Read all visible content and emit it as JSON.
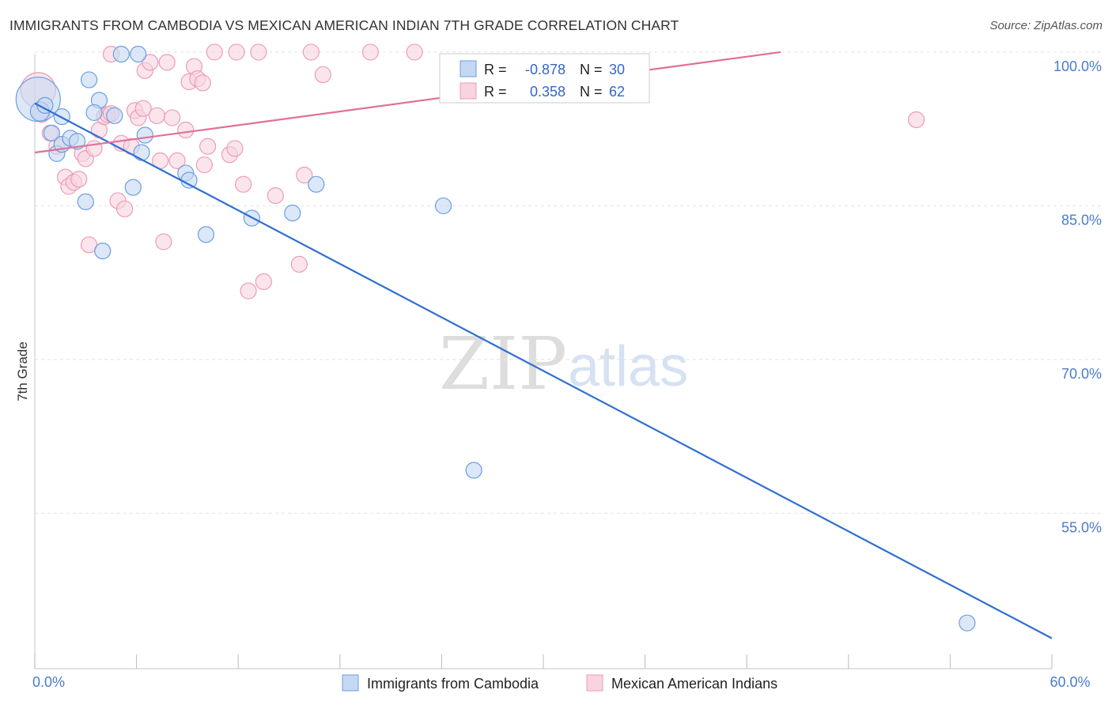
{
  "title": "IMMIGRANTS FROM CAMBODIA VS MEXICAN AMERICAN INDIAN 7TH GRADE CORRELATION CHART",
  "source": "Source: ZipAtlas.com",
  "watermark": {
    "zip": "ZIP",
    "atlas": "atlas"
  },
  "chart_data": {
    "type": "scatter",
    "xlabel": "",
    "ylabel": "7th Grade",
    "xlim": [
      0,
      60
    ],
    "ylim": [
      42,
      102
    ],
    "x_tick_labels": [
      {
        "value": 0,
        "label": "0.0%"
      },
      {
        "value": 60,
        "label": "60.0%"
      }
    ],
    "y_tick_labels": [
      {
        "value": 100,
        "label": "100.0%"
      },
      {
        "value": 85,
        "label": "85.0%"
      },
      {
        "value": 70,
        "label": "70.0%"
      },
      {
        "value": 55,
        "label": "55.0%"
      }
    ],
    "y_gridlines": [
      100,
      85,
      70,
      55
    ],
    "grid": true,
    "legend_position": "bottom",
    "stats_box": [
      {
        "r_label": "R =",
        "r_value": "-0.878",
        "n_label": "N =",
        "n_value": "30"
      },
      {
        "r_label": "R =",
        "r_value": "0.358",
        "n_label": "N =",
        "n_value": "62"
      }
    ],
    "series": [
      {
        "name": "Immigrants from Cambodia",
        "color": "#6a9ee0",
        "fill": "#c5d8f3",
        "line_color": "#2f6fd1",
        "trend": [
          [
            0,
            95.0
          ],
          [
            60,
            42.8
          ]
        ],
        "points": [
          [
            0.2,
            95.4,
            28
          ],
          [
            0.3,
            94.2,
            12
          ],
          [
            0.6,
            94.8,
            10
          ],
          [
            1.0,
            92.1,
            10
          ],
          [
            1.3,
            90.1,
            10
          ],
          [
            1.6,
            91.0,
            10
          ],
          [
            2.1,
            91.6,
            10
          ],
          [
            2.5,
            91.3,
            10
          ],
          [
            1.6,
            93.7,
            10
          ],
          [
            3.2,
            97.3,
            10
          ],
          [
            3.8,
            95.3,
            10
          ],
          [
            3.5,
            94.1,
            10
          ],
          [
            4.7,
            93.8,
            10
          ],
          [
            5.1,
            99.8,
            10
          ],
          [
            6.1,
            99.8,
            10
          ],
          [
            6.5,
            91.9,
            10
          ],
          [
            6.3,
            90.2,
            10
          ],
          [
            5.8,
            86.8,
            10
          ],
          [
            3.0,
            85.4,
            10
          ],
          [
            4.0,
            80.6,
            10
          ],
          [
            8.9,
            88.2,
            10
          ],
          [
            9.1,
            87.5,
            10
          ],
          [
            10.1,
            82.2,
            10
          ],
          [
            12.8,
            83.8,
            10
          ],
          [
            15.2,
            84.3,
            10
          ],
          [
            16.6,
            87.1,
            10
          ],
          [
            24.1,
            85.0,
            10
          ],
          [
            25.9,
            59.2,
            10
          ],
          [
            55.0,
            44.3,
            10
          ]
        ]
      },
      {
        "name": "Mexican American Indians",
        "color": "#ee9ab8",
        "fill": "#f9d3e0",
        "line_color": "#e07098",
        "trend": [
          [
            0,
            90.2
          ],
          [
            44,
            100.0
          ]
        ],
        "points": [
          [
            0.2,
            96.3,
            22
          ],
          [
            0.4,
            94.0,
            11
          ],
          [
            0.9,
            92.1,
            10
          ],
          [
            1.3,
            90.8,
            10
          ],
          [
            1.6,
            91.0,
            10
          ],
          [
            1.8,
            87.8,
            10
          ],
          [
            2.0,
            86.9,
            10
          ],
          [
            2.3,
            87.3,
            10
          ],
          [
            2.6,
            87.6,
            10
          ],
          [
            2.8,
            90.1,
            10
          ],
          [
            3.0,
            89.6,
            10
          ],
          [
            3.5,
            90.6,
            10
          ],
          [
            3.8,
            92.4,
            10
          ],
          [
            4.1,
            93.7,
            10
          ],
          [
            4.3,
            93.9,
            10
          ],
          [
            4.5,
            94.0,
            10
          ],
          [
            4.9,
            85.5,
            10
          ],
          [
            5.1,
            91.1,
            10
          ],
          [
            5.3,
            84.7,
            10
          ],
          [
            5.7,
            90.8,
            10
          ],
          [
            5.9,
            94.3,
            10
          ],
          [
            6.1,
            93.6,
            10
          ],
          [
            6.4,
            94.5,
            10
          ],
          [
            6.5,
            98.2,
            10
          ],
          [
            6.8,
            99.0,
            10
          ],
          [
            7.2,
            93.8,
            10
          ],
          [
            7.4,
            89.4,
            10
          ],
          [
            7.6,
            81.5,
            10
          ],
          [
            7.8,
            99.0,
            10
          ],
          [
            8.1,
            93.6,
            10
          ],
          [
            8.4,
            89.4,
            10
          ],
          [
            8.9,
            92.4,
            10
          ],
          [
            9.1,
            97.1,
            10
          ],
          [
            9.4,
            98.6,
            10
          ],
          [
            9.6,
            97.4,
            10
          ],
          [
            9.9,
            97.0,
            10
          ],
          [
            10.0,
            89.0,
            10
          ],
          [
            10.2,
            90.8,
            10
          ],
          [
            10.6,
            100.0,
            10
          ],
          [
            11.5,
            90.0,
            10
          ],
          [
            11.8,
            90.6,
            10
          ],
          [
            11.9,
            100.0,
            10
          ],
          [
            12.3,
            87.1,
            10
          ],
          [
            12.6,
            76.7,
            10
          ],
          [
            13.2,
            100.0,
            10
          ],
          [
            13.5,
            77.6,
            10
          ],
          [
            14.2,
            86.0,
            10
          ],
          [
            15.6,
            79.3,
            10
          ],
          [
            15.9,
            88.0,
            10
          ],
          [
            16.3,
            100.0,
            10
          ],
          [
            17.0,
            97.8,
            10
          ],
          [
            19.8,
            100.0,
            10
          ],
          [
            22.4,
            100.0,
            10
          ],
          [
            52.0,
            93.4,
            10
          ],
          [
            3.2,
            81.2,
            10
          ],
          [
            4.5,
            99.8,
            10
          ]
        ]
      }
    ]
  }
}
